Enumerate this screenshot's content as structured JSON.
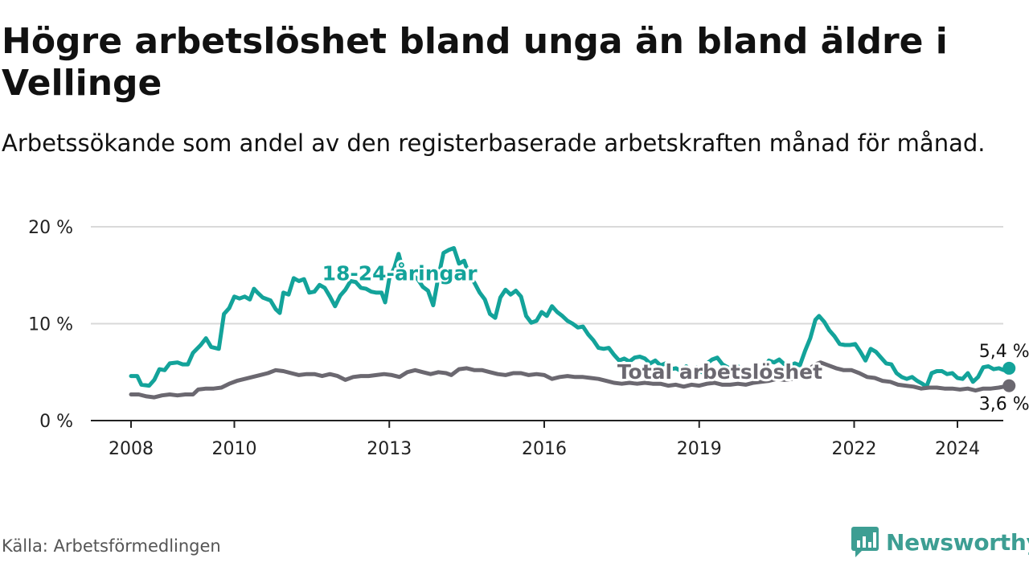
{
  "title": "Högre arbetslöshet bland unga än bland äldre i Vellinge",
  "subtitle": "Arbetssökande som andel av den registerbaserade arbetskraften månad för månad.",
  "source": "Källa: Arbetsförmedlingen",
  "brand": "Newsworthy",
  "colors": {
    "youth": "#13a39a",
    "total": "#6b6870",
    "brand": "#3d9e93",
    "grid": "#d9d9d9",
    "axis": "#222222"
  },
  "chart_data": {
    "type": "line",
    "title": "Högre arbetslöshet bland unga än bland äldre i Vellinge",
    "xlabel": "",
    "ylabel": "",
    "xlim": [
      2008,
      2025
    ],
    "ylim": [
      0,
      20
    ],
    "y_ticks": [
      0,
      10,
      20
    ],
    "y_tick_labels": [
      "0 %",
      "10 %",
      "20 %"
    ],
    "x_ticks": [
      2008,
      2010,
      2013,
      2016,
      2019,
      2022,
      2024
    ],
    "x_tick_labels": [
      "2008",
      "2010",
      "2013",
      "2016",
      "2019",
      "2022",
      "2024"
    ],
    "grid": true,
    "series": [
      {
        "name": "18-24-åringar",
        "label_at": [
          2013.2,
          14.5
        ],
        "end_label": "5,4 %",
        "points": [
          [
            2008.0,
            4.6
          ],
          [
            2008.12,
            4.6
          ],
          [
            2008.2,
            3.7
          ],
          [
            2008.35,
            3.6
          ],
          [
            2008.45,
            4.2
          ],
          [
            2008.55,
            5.3
          ],
          [
            2008.65,
            5.2
          ],
          [
            2008.75,
            5.9
          ],
          [
            2008.9,
            6.0
          ],
          [
            2009.0,
            5.8
          ],
          [
            2009.1,
            5.8
          ],
          [
            2009.2,
            7.0
          ],
          [
            2009.35,
            7.8
          ],
          [
            2009.45,
            8.5
          ],
          [
            2009.55,
            7.6
          ],
          [
            2009.7,
            7.4
          ],
          [
            2009.8,
            11.0
          ],
          [
            2009.9,
            11.6
          ],
          [
            2010.0,
            12.8
          ],
          [
            2010.1,
            12.6
          ],
          [
            2010.2,
            12.8
          ],
          [
            2010.3,
            12.5
          ],
          [
            2010.38,
            13.6
          ],
          [
            2010.45,
            13.2
          ],
          [
            2010.55,
            12.7
          ],
          [
            2010.7,
            12.4
          ],
          [
            2010.8,
            11.5
          ],
          [
            2010.88,
            11.1
          ],
          [
            2010.95,
            13.2
          ],
          [
            2011.05,
            13.0
          ],
          [
            2011.15,
            14.7
          ],
          [
            2011.25,
            14.4
          ],
          [
            2011.35,
            14.6
          ],
          [
            2011.45,
            13.2
          ],
          [
            2011.55,
            13.3
          ],
          [
            2011.65,
            14.0
          ],
          [
            2011.75,
            13.7
          ],
          [
            2011.85,
            12.8
          ],
          [
            2011.95,
            11.8
          ],
          [
            2012.05,
            12.9
          ],
          [
            2012.15,
            13.5
          ],
          [
            2012.25,
            14.4
          ],
          [
            2012.35,
            14.3
          ],
          [
            2012.45,
            13.7
          ],
          [
            2012.55,
            13.6
          ],
          [
            2012.65,
            13.3
          ],
          [
            2012.75,
            13.2
          ],
          [
            2012.85,
            13.2
          ],
          [
            2012.92,
            12.2
          ],
          [
            2013.0,
            14.7
          ],
          [
            2013.1,
            15.8
          ],
          [
            2013.18,
            17.2
          ],
          [
            2013.25,
            15.8
          ],
          [
            2013.35,
            14.8
          ],
          [
            2013.45,
            15.0
          ],
          [
            2013.55,
            14.6
          ],
          [
            2013.65,
            13.8
          ],
          [
            2013.75,
            13.4
          ],
          [
            2013.85,
            11.9
          ],
          [
            2013.95,
            14.8
          ],
          [
            2014.05,
            17.3
          ],
          [
            2014.15,
            17.6
          ],
          [
            2014.25,
            17.8
          ],
          [
            2014.35,
            16.2
          ],
          [
            2014.45,
            16.5
          ],
          [
            2014.55,
            15.0
          ],
          [
            2014.65,
            14.2
          ],
          [
            2014.75,
            13.2
          ],
          [
            2014.85,
            12.5
          ],
          [
            2014.95,
            11.0
          ],
          [
            2015.05,
            10.6
          ],
          [
            2015.15,
            12.7
          ],
          [
            2015.25,
            13.5
          ],
          [
            2015.35,
            13.0
          ],
          [
            2015.45,
            13.4
          ],
          [
            2015.55,
            12.8
          ],
          [
            2015.65,
            10.8
          ],
          [
            2015.75,
            10.1
          ],
          [
            2015.85,
            10.3
          ],
          [
            2015.95,
            11.2
          ],
          [
            2016.05,
            10.8
          ],
          [
            2016.15,
            11.8
          ],
          [
            2016.25,
            11.2
          ],
          [
            2016.35,
            10.8
          ],
          [
            2016.45,
            10.3
          ],
          [
            2016.55,
            10.0
          ],
          [
            2016.65,
            9.6
          ],
          [
            2016.75,
            9.7
          ],
          [
            2016.85,
            8.9
          ],
          [
            2016.95,
            8.3
          ],
          [
            2017.05,
            7.5
          ],
          [
            2017.15,
            7.4
          ],
          [
            2017.25,
            7.5
          ],
          [
            2017.35,
            6.8
          ],
          [
            2017.45,
            6.2
          ],
          [
            2017.55,
            6.4
          ],
          [
            2017.65,
            6.1
          ],
          [
            2017.75,
            6.5
          ],
          [
            2017.85,
            6.6
          ],
          [
            2017.95,
            6.4
          ],
          [
            2018.05,
            5.9
          ],
          [
            2018.15,
            6.2
          ],
          [
            2018.25,
            5.7
          ],
          [
            2018.35,
            5.9
          ],
          [
            2018.45,
            5.3
          ],
          [
            2018.55,
            5.4
          ],
          [
            2018.65,
            5.1
          ],
          [
            2018.75,
            5.6
          ],
          [
            2018.85,
            4.9
          ],
          [
            2018.95,
            5.5
          ],
          [
            2019.05,
            5.0
          ],
          [
            2019.15,
            5.9
          ],
          [
            2019.25,
            6.3
          ],
          [
            2019.35,
            6.5
          ],
          [
            2019.45,
            5.8
          ],
          [
            2019.55,
            5.5
          ],
          [
            2019.65,
            5.2
          ],
          [
            2019.75,
            5.6
          ],
          [
            2019.85,
            5.1
          ],
          [
            2019.95,
            5.0
          ],
          [
            2020.05,
            5.3
          ],
          [
            2020.15,
            5.0
          ],
          [
            2020.25,
            5.4
          ],
          [
            2020.35,
            6.2
          ],
          [
            2020.45,
            6.0
          ],
          [
            2020.55,
            6.3
          ],
          [
            2020.65,
            5.8
          ],
          [
            2020.75,
            5.6
          ],
          [
            2020.85,
            5.9
          ],
          [
            2020.95,
            5.7
          ],
          [
            2021.05,
            7.2
          ],
          [
            2021.15,
            8.5
          ],
          [
            2021.25,
            10.4
          ],
          [
            2021.32,
            10.8
          ],
          [
            2021.42,
            10.2
          ],
          [
            2021.52,
            9.3
          ],
          [
            2021.62,
            8.7
          ],
          [
            2021.72,
            7.9
          ],
          [
            2021.82,
            7.8
          ],
          [
            2021.92,
            7.8
          ],
          [
            2022.02,
            7.9
          ],
          [
            2022.12,
            7.1
          ],
          [
            2022.22,
            6.2
          ],
          [
            2022.32,
            7.4
          ],
          [
            2022.42,
            7.1
          ],
          [
            2022.52,
            6.5
          ],
          [
            2022.62,
            5.9
          ],
          [
            2022.72,
            5.8
          ],
          [
            2022.82,
            4.9
          ],
          [
            2022.92,
            4.5
          ],
          [
            2023.02,
            4.3
          ],
          [
            2023.12,
            4.5
          ],
          [
            2023.22,
            4.1
          ],
          [
            2023.32,
            3.8
          ],
          [
            2023.4,
            3.5
          ],
          [
            2023.5,
            4.9
          ],
          [
            2023.6,
            5.1
          ],
          [
            2023.7,
            5.1
          ],
          [
            2023.8,
            4.8
          ],
          [
            2023.9,
            4.9
          ],
          [
            2024.0,
            4.4
          ],
          [
            2024.1,
            4.3
          ],
          [
            2024.2,
            4.9
          ],
          [
            2024.3,
            4.0
          ],
          [
            2024.4,
            4.5
          ],
          [
            2024.5,
            5.5
          ],
          [
            2024.6,
            5.6
          ],
          [
            2024.7,
            5.3
          ],
          [
            2024.8,
            5.4
          ],
          [
            2024.9,
            5.2
          ],
          [
            2025.0,
            5.4
          ]
        ]
      },
      {
        "name": "Total arbetslöshet",
        "label_at": [
          2019.4,
          4.3
        ],
        "end_label": "3,6 %",
        "points": [
          [
            2008.0,
            2.7
          ],
          [
            2008.15,
            2.7
          ],
          [
            2008.3,
            2.5
          ],
          [
            2008.45,
            2.4
          ],
          [
            2008.6,
            2.6
          ],
          [
            2008.75,
            2.7
          ],
          [
            2008.9,
            2.6
          ],
          [
            2009.05,
            2.7
          ],
          [
            2009.2,
            2.7
          ],
          [
            2009.3,
            3.2
          ],
          [
            2009.45,
            3.3
          ],
          [
            2009.6,
            3.3
          ],
          [
            2009.75,
            3.4
          ],
          [
            2009.9,
            3.8
          ],
          [
            2010.05,
            4.1
          ],
          [
            2010.2,
            4.3
          ],
          [
            2010.35,
            4.5
          ],
          [
            2010.5,
            4.7
          ],
          [
            2010.65,
            4.9
          ],
          [
            2010.8,
            5.2
          ],
          [
            2010.95,
            5.1
          ],
          [
            2011.1,
            4.9
          ],
          [
            2011.25,
            4.7
          ],
          [
            2011.4,
            4.8
          ],
          [
            2011.55,
            4.8
          ],
          [
            2011.7,
            4.6
          ],
          [
            2011.85,
            4.8
          ],
          [
            2012.0,
            4.6
          ],
          [
            2012.15,
            4.2
          ],
          [
            2012.3,
            4.5
          ],
          [
            2012.45,
            4.6
          ],
          [
            2012.6,
            4.6
          ],
          [
            2012.75,
            4.7
          ],
          [
            2012.9,
            4.8
          ],
          [
            2013.05,
            4.7
          ],
          [
            2013.2,
            4.5
          ],
          [
            2013.35,
            5.0
          ],
          [
            2013.5,
            5.2
          ],
          [
            2013.65,
            5.0
          ],
          [
            2013.8,
            4.8
          ],
          [
            2013.95,
            5.0
          ],
          [
            2014.1,
            4.9
          ],
          [
            2014.2,
            4.7
          ],
          [
            2014.35,
            5.3
          ],
          [
            2014.5,
            5.4
          ],
          [
            2014.65,
            5.2
          ],
          [
            2014.8,
            5.2
          ],
          [
            2014.95,
            5.0
          ],
          [
            2015.1,
            4.8
          ],
          [
            2015.25,
            4.7
          ],
          [
            2015.4,
            4.9
          ],
          [
            2015.55,
            4.9
          ],
          [
            2015.7,
            4.7
          ],
          [
            2015.85,
            4.8
          ],
          [
            2016.0,
            4.7
          ],
          [
            2016.15,
            4.3
          ],
          [
            2016.3,
            4.5
          ],
          [
            2016.45,
            4.6
          ],
          [
            2016.6,
            4.5
          ],
          [
            2016.75,
            4.5
          ],
          [
            2016.9,
            4.4
          ],
          [
            2017.05,
            4.3
          ],
          [
            2017.2,
            4.1
          ],
          [
            2017.35,
            3.9
          ],
          [
            2017.5,
            3.8
          ],
          [
            2017.65,
            3.9
          ],
          [
            2017.8,
            3.8
          ],
          [
            2017.95,
            3.9
          ],
          [
            2018.1,
            3.8
          ],
          [
            2018.25,
            3.8
          ],
          [
            2018.4,
            3.6
          ],
          [
            2018.55,
            3.7
          ],
          [
            2018.7,
            3.5
          ],
          [
            2018.85,
            3.7
          ],
          [
            2019.0,
            3.6
          ],
          [
            2019.15,
            3.8
          ],
          [
            2019.3,
            3.9
          ],
          [
            2019.45,
            3.7
          ],
          [
            2019.6,
            3.7
          ],
          [
            2019.75,
            3.8
          ],
          [
            2019.9,
            3.7
          ],
          [
            2020.05,
            3.9
          ],
          [
            2020.2,
            4.0
          ],
          [
            2020.35,
            4.1
          ],
          [
            2020.5,
            4.3
          ],
          [
            2020.65,
            4.2
          ],
          [
            2020.8,
            4.3
          ],
          [
            2020.95,
            4.6
          ],
          [
            2021.1,
            5.2
          ],
          [
            2021.25,
            5.8
          ],
          [
            2021.35,
            6.0
          ],
          [
            2021.5,
            5.7
          ],
          [
            2021.65,
            5.4
          ],
          [
            2021.8,
            5.2
          ],
          [
            2021.95,
            5.2
          ],
          [
            2022.1,
            4.9
          ],
          [
            2022.25,
            4.5
          ],
          [
            2022.4,
            4.4
          ],
          [
            2022.55,
            4.1
          ],
          [
            2022.7,
            4.0
          ],
          [
            2022.85,
            3.7
          ],
          [
            2023.0,
            3.6
          ],
          [
            2023.15,
            3.5
          ],
          [
            2023.3,
            3.3
          ],
          [
            2023.45,
            3.4
          ],
          [
            2023.6,
            3.4
          ],
          [
            2023.75,
            3.3
          ],
          [
            2023.9,
            3.3
          ],
          [
            2024.05,
            3.2
          ],
          [
            2024.2,
            3.3
          ],
          [
            2024.35,
            3.1
          ],
          [
            2024.5,
            3.3
          ],
          [
            2024.65,
            3.3
          ],
          [
            2024.8,
            3.4
          ],
          [
            2025.0,
            3.6
          ]
        ]
      }
    ]
  }
}
